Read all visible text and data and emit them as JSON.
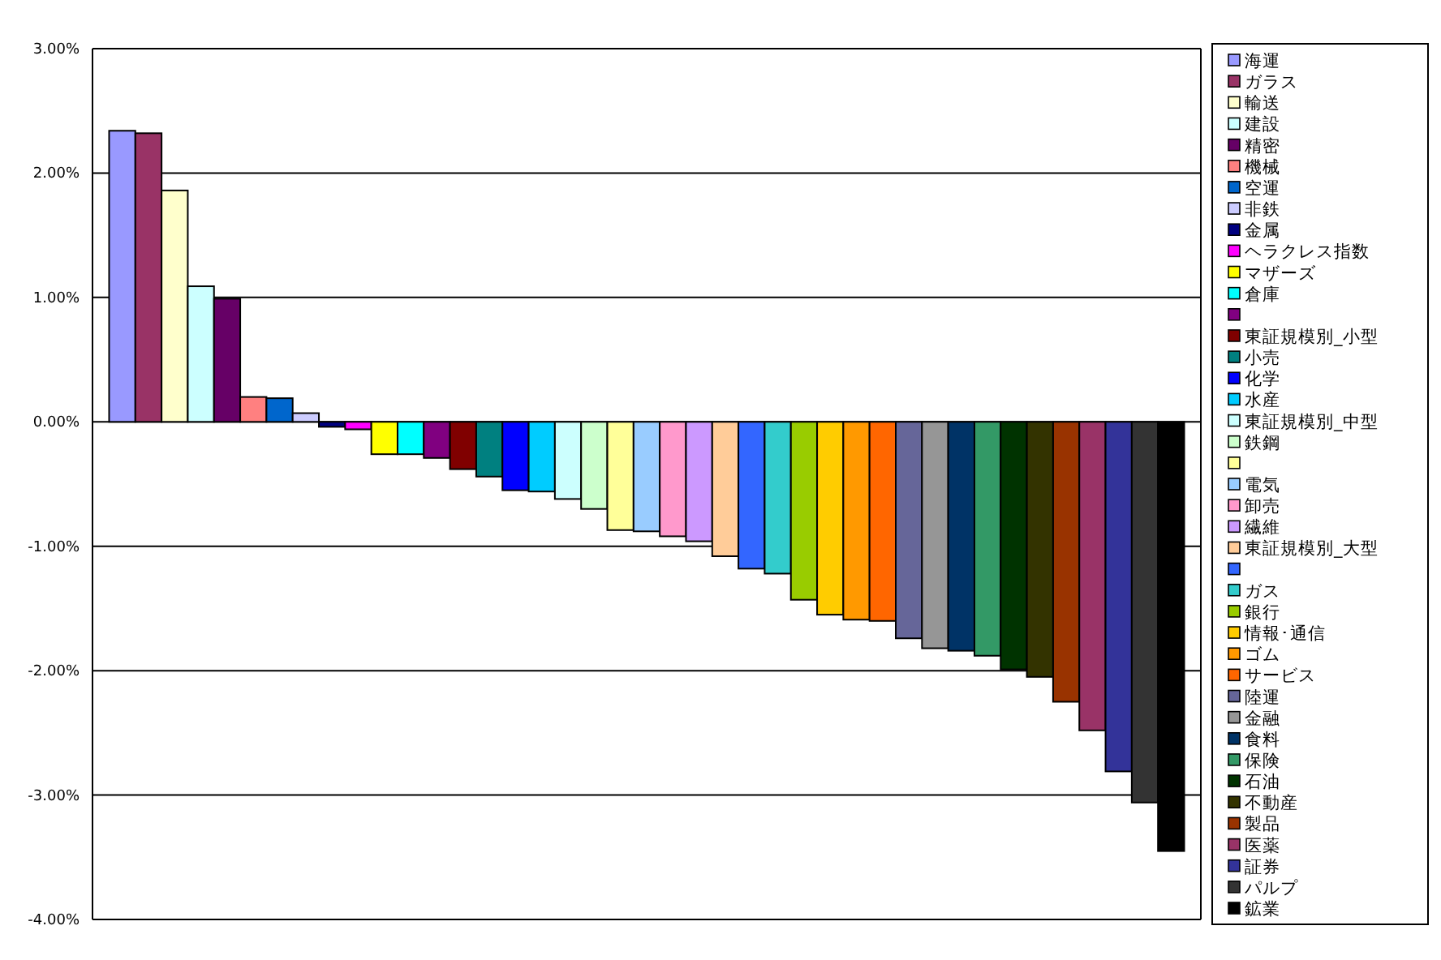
{
  "chart_data": {
    "type": "bar",
    "legend": "right",
    "grid": "y",
    "tick_labels": "y",
    "categories": [
      null
    ],
    "series": [
      {
        "name": "海運",
        "color": "#9999ff",
        "values": [
          2.34
        ]
      },
      {
        "name": "ガラス",
        "color": "#993366",
        "values": [
          2.32
        ]
      },
      {
        "name": "輸送",
        "color": "#ffffcc",
        "values": [
          1.86
        ]
      },
      {
        "name": "建設",
        "color": "#ccffff",
        "values": [
          1.09
        ]
      },
      {
        "name": "精密",
        "color": "#660066",
        "values": [
          0.99
        ]
      },
      {
        "name": "機械",
        "color": "#ff8080",
        "values": [
          0.2
        ]
      },
      {
        "name": "空運",
        "color": "#0066cc",
        "values": [
          0.19
        ]
      },
      {
        "name": "非鉄",
        "color": "#ccccff",
        "values": [
          0.07
        ]
      },
      {
        "name": "金属",
        "color": "#000080",
        "values": [
          -0.04
        ]
      },
      {
        "name": "ヘラクレス指数",
        "color": "#ff00ff",
        "values": [
          -0.06
        ]
      },
      {
        "name": "マザーズ",
        "color": "#ffff00",
        "values": [
          -0.26
        ]
      },
      {
        "name": "倉庫",
        "color": "#00ffff",
        "values": [
          -0.26
        ]
      },
      {
        "color": "#800080",
        "values": [
          -0.29
        ]
      },
      {
        "name": "東証規模別_小型",
        "color": "#800000",
        "values": [
          -0.38
        ]
      },
      {
        "name": "小売",
        "color": "#008080",
        "values": [
          -0.44
        ]
      },
      {
        "name": "化学",
        "color": "#0000ff",
        "values": [
          -0.55
        ]
      },
      {
        "name": "水産",
        "color": "#00ccff",
        "values": [
          -0.56
        ]
      },
      {
        "name": "東証規模別_中型",
        "color": "#ccfffe",
        "values": [
          -0.62
        ]
      },
      {
        "name": "鉄鋼",
        "color": "#ccffcc",
        "values": [
          -0.7
        ]
      },
      {
        "color": "#ffff99",
        "values": [
          -0.87
        ]
      },
      {
        "name": "電気",
        "color": "#99ccff",
        "values": [
          -0.88
        ]
      },
      {
        "name": "卸売",
        "color": "#ff99cc",
        "values": [
          -0.92
        ]
      },
      {
        "name": "繊維",
        "color": "#cc99ff",
        "values": [
          -0.96
        ]
      },
      {
        "name": "東証規模別_大型",
        "color": "#ffcc99",
        "values": [
          -1.08
        ]
      },
      {
        "color": "#3366ff",
        "values": [
          -1.18
        ]
      },
      {
        "name": "ガス",
        "color": "#33cccc",
        "values": [
          -1.22
        ]
      },
      {
        "name": "銀行",
        "color": "#99cc00",
        "values": [
          -1.43
        ]
      },
      {
        "name": "情報･通信",
        "color": "#ffcc00",
        "values": [
          -1.55
        ]
      },
      {
        "name": "ゴム",
        "color": "#ff9900",
        "values": [
          -1.59
        ]
      },
      {
        "name": "サービス",
        "color": "#ff6600",
        "values": [
          -1.6
        ]
      },
      {
        "name": "陸運",
        "color": "#666699",
        "values": [
          -1.74
        ]
      },
      {
        "name": "金融",
        "color": "#969696",
        "values": [
          -1.82
        ]
      },
      {
        "name": "食料",
        "color": "#003366",
        "values": [
          -1.84
        ]
      },
      {
        "name": "保険",
        "color": "#339966",
        "values": [
          -1.88
        ]
      },
      {
        "name": "石油",
        "color": "#003300",
        "values": [
          -1.99
        ]
      },
      {
        "name": "不動産",
        "color": "#333300",
        "values": [
          -2.05
        ]
      },
      {
        "name": "製品",
        "color": "#993300",
        "values": [
          -2.25
        ]
      },
      {
        "name": "医薬",
        "color": "#993367",
        "values": [
          -2.48
        ]
      },
      {
        "name": "証券",
        "color": "#333399",
        "values": [
          -2.81
        ]
      },
      {
        "name": "パルプ",
        "color": "#333333",
        "values": [
          -3.06
        ]
      },
      {
        "name": "鉱業",
        "color": "#000000",
        "values": [
          -3.45
        ]
      }
    ],
    "ylim": [
      -4,
      3
    ],
    "yticks": [
      {
        "value": 3,
        "label": "3.00%"
      },
      {
        "value": 2,
        "label": "2.00%"
      },
      {
        "value": 1,
        "label": "1.00%"
      },
      {
        "value": 0,
        "label": "0.00%"
      },
      {
        "value": -1,
        "label": "-1.00%"
      },
      {
        "value": -2,
        "label": "-2.00%"
      },
      {
        "value": -3,
        "label": "-3.00%"
      },
      {
        "value": -4,
        "label": "-4.00%"
      }
    ]
  }
}
